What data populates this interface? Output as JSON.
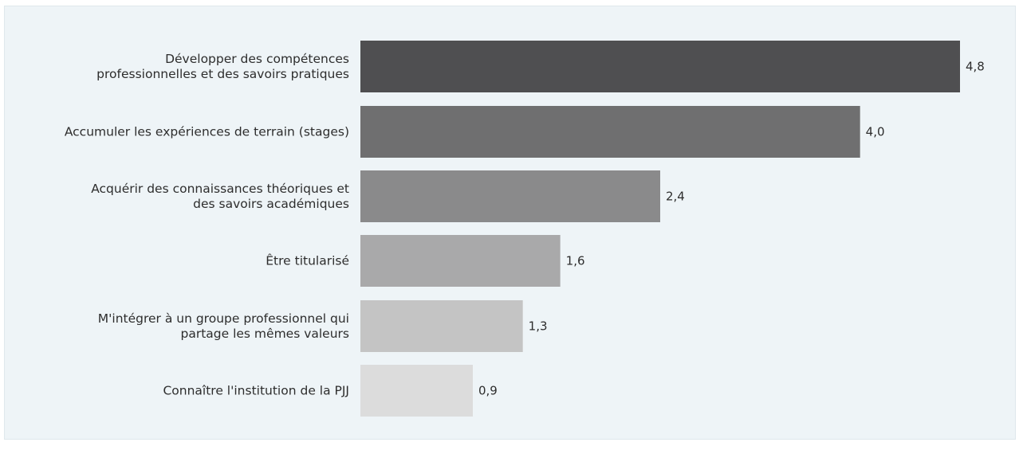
{
  "chart_data": {
    "type": "bar",
    "orientation": "horizontal",
    "categories": [
      [
        "Développer des compétences",
        "professionnelles et des savoirs pratiques"
      ],
      [
        "Accumuler les expériences de terrain (stages)"
      ],
      [
        "Acquérir des connaissances théoriques et",
        "des savoirs académiques"
      ],
      [
        "Être titularisé"
      ],
      [
        "M'intégrer à un groupe professionnel qui",
        "partage les mêmes valeurs"
      ],
      [
        "Connaître l'institution de la PJJ"
      ]
    ],
    "values": [
      4.8,
      4.0,
      2.4,
      1.6,
      1.3,
      0.9
    ],
    "value_labels": [
      "4,8",
      "4,0",
      "2,4",
      "1,6",
      "1,3",
      "0,9"
    ],
    "colors": [
      "#4f4f51",
      "#6f6f70",
      "#8a8a8b",
      "#a9a9aa",
      "#c4c4c4",
      "#dcdcdc"
    ],
    "xlim": [
      0,
      4.8
    ],
    "grid": false,
    "legend": false
  }
}
